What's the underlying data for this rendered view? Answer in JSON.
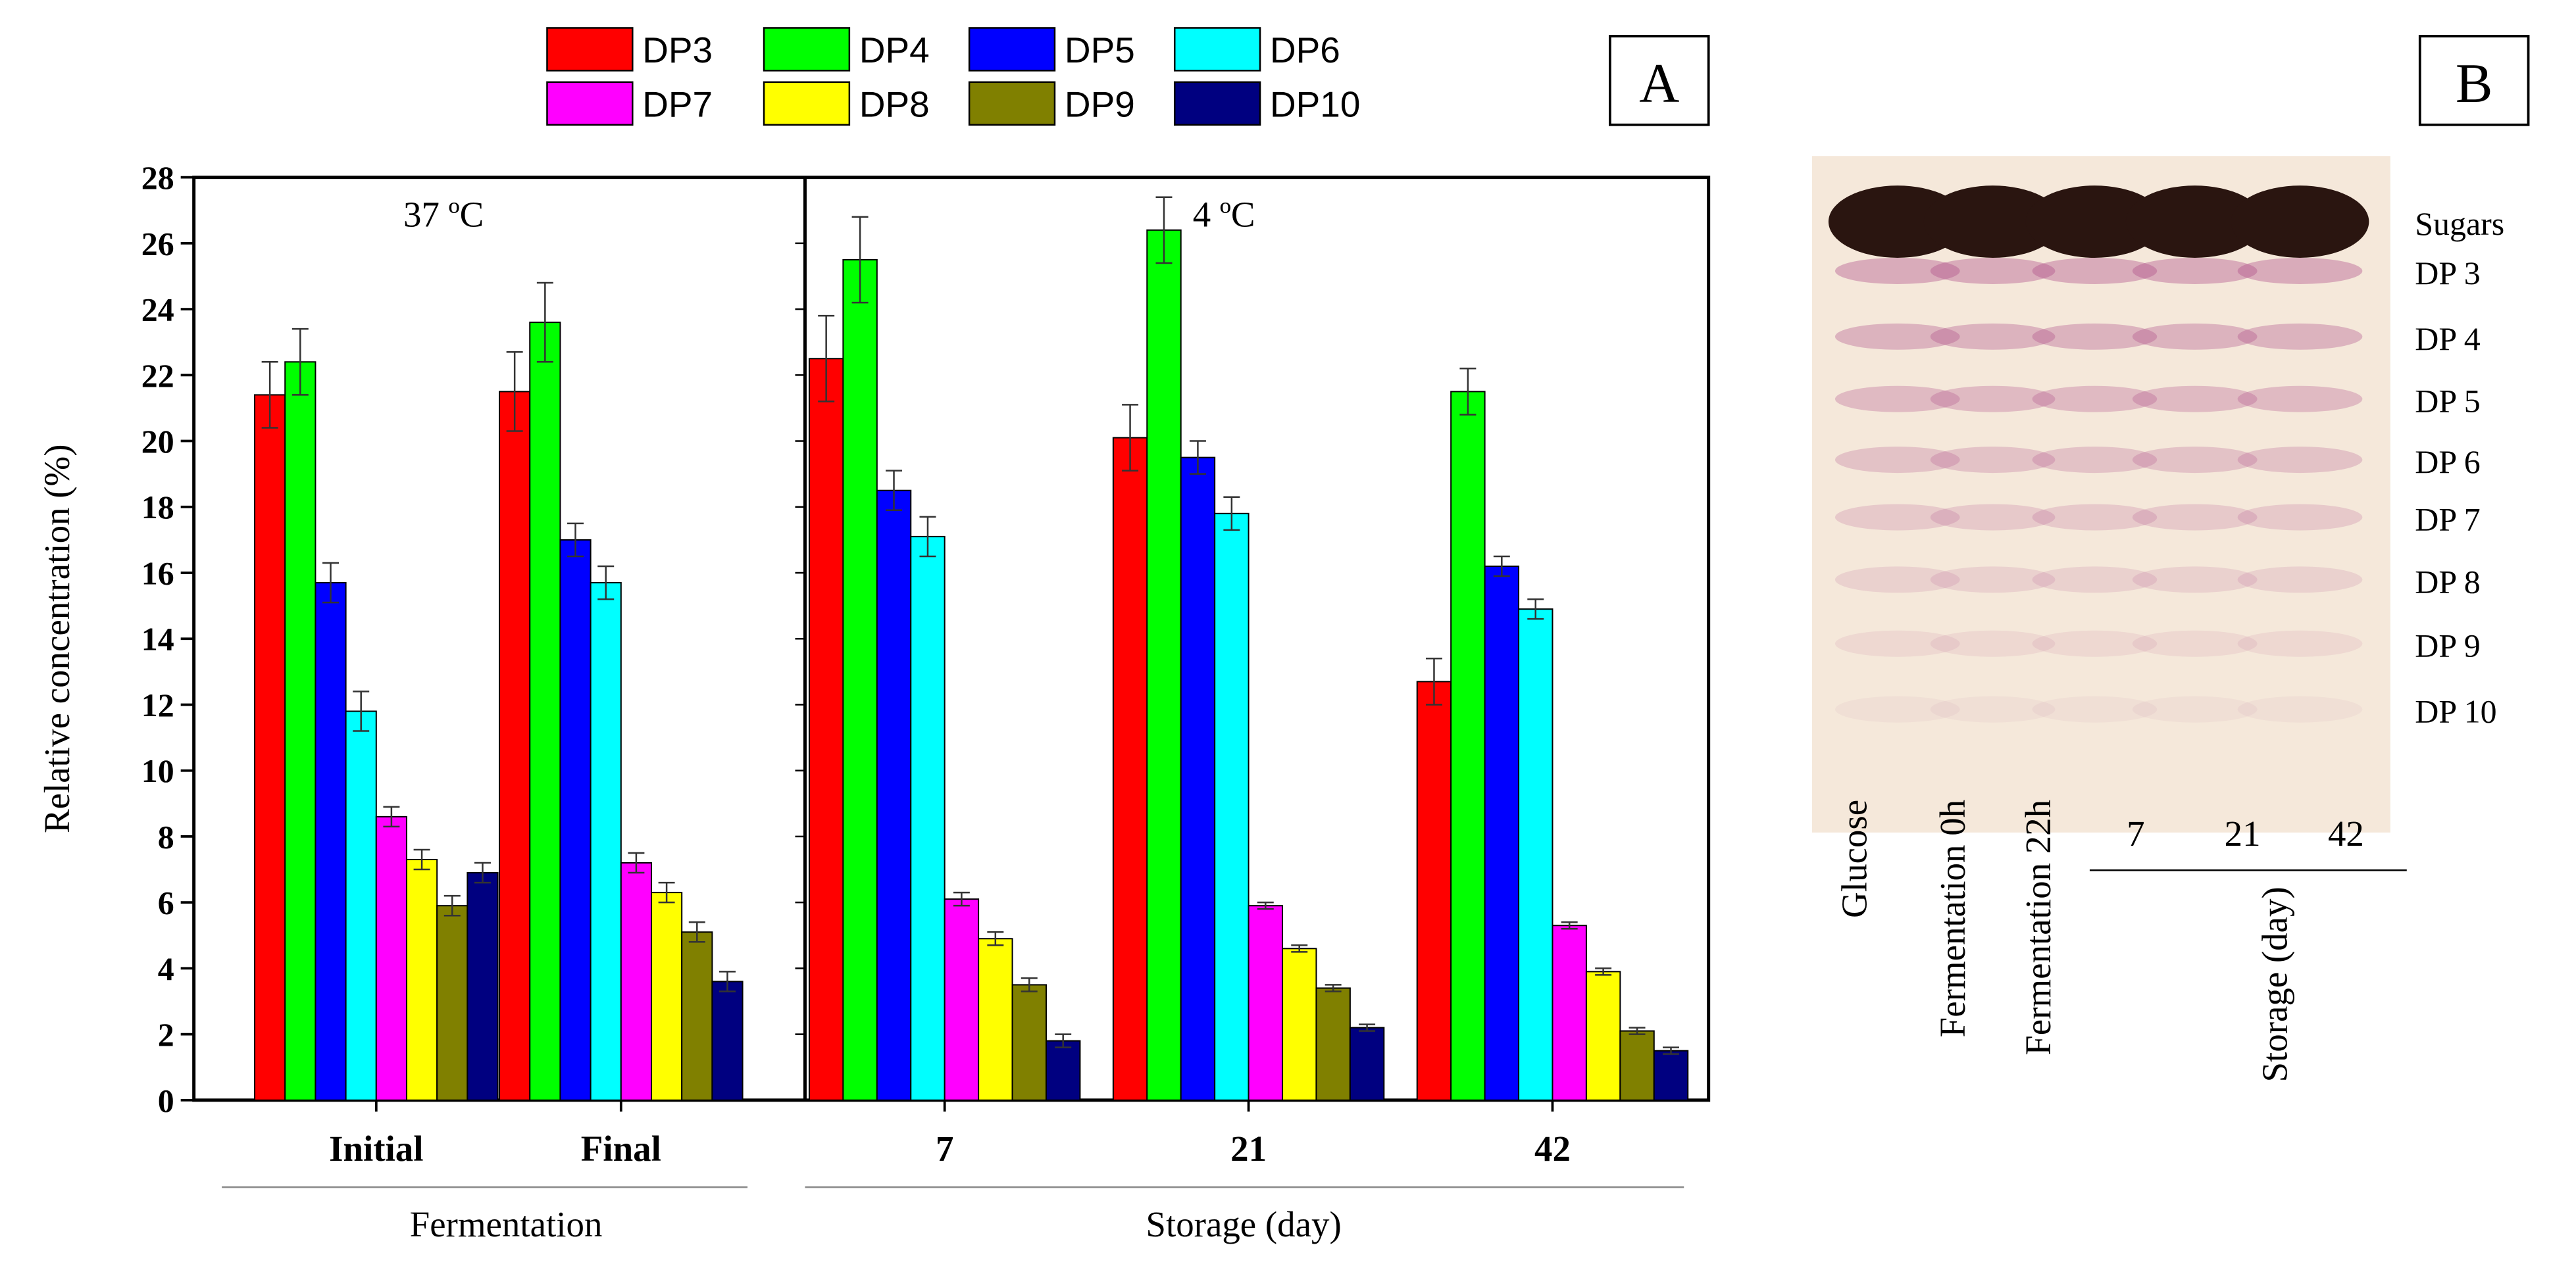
{
  "chart_data": {
    "type": "bar",
    "panel_label": "A",
    "ylabel": "Relative concentration (%)",
    "ylim": [
      0,
      28
    ],
    "yticks": [
      0,
      2,
      4,
      6,
      8,
      10,
      12,
      14,
      16,
      18,
      20,
      22,
      24,
      26,
      28
    ],
    "categories": [
      "Initial",
      "Final",
      "7",
      "21",
      "42"
    ],
    "section_titles": [
      "37 ºC",
      "4 ºC"
    ],
    "group_labels": [
      "Fermentation",
      "Storage (day)"
    ],
    "legend_position": "top-center",
    "series": [
      {
        "name": "DP3",
        "color": "#ff0000",
        "values": [
          21.4,
          21.5,
          22.5,
          20.1,
          12.7
        ],
        "errors": [
          1.0,
          1.2,
          1.3,
          1.0,
          0.7
        ]
      },
      {
        "name": "DP4",
        "color": "#00ff00",
        "values": [
          22.4,
          23.6,
          25.5,
          26.4,
          21.5
        ],
        "errors": [
          1.0,
          1.2,
          1.3,
          1.0,
          0.7
        ]
      },
      {
        "name": "DP5",
        "color": "#0000ff",
        "values": [
          15.7,
          17.0,
          18.5,
          19.5,
          16.2
        ],
        "errors": [
          0.6,
          0.5,
          0.6,
          0.5,
          0.3
        ]
      },
      {
        "name": "DP6",
        "color": "#00ffff",
        "values": [
          11.8,
          15.7,
          17.1,
          17.8,
          14.9
        ],
        "errors": [
          0.6,
          0.5,
          0.6,
          0.5,
          0.3
        ]
      },
      {
        "name": "DP7",
        "color": "#ff00ff",
        "values": [
          8.6,
          7.2,
          6.1,
          5.9,
          5.3
        ],
        "errors": [
          0.3,
          0.3,
          0.2,
          0.1,
          0.1
        ]
      },
      {
        "name": "DP8",
        "color": "#ffff00",
        "values": [
          7.3,
          6.3,
          4.9,
          4.6,
          3.9
        ],
        "errors": [
          0.3,
          0.3,
          0.2,
          0.1,
          0.1
        ]
      },
      {
        "name": "DP9",
        "color": "#808000",
        "values": [
          5.9,
          5.1,
          3.5,
          3.4,
          2.1
        ],
        "errors": [
          0.3,
          0.3,
          0.2,
          0.1,
          0.1
        ]
      },
      {
        "name": "DP10",
        "color": "#000080",
        "values": [
          6.9,
          3.6,
          1.8,
          2.2,
          1.5
        ],
        "errors": [
          0.3,
          0.3,
          0.2,
          0.1,
          0.1
        ]
      }
    ]
  },
  "panel_b": {
    "panel_label": "B",
    "band_labels": [
      "Sugars",
      "DP 3",
      "DP 4",
      "DP 5",
      "DP 6",
      "DP 7",
      "DP 8",
      "DP 9",
      "DP 10"
    ],
    "lane_labels": [
      "Glucose",
      "Fermentation 0h",
      "Fermentation 22h",
      "7",
      "21",
      "42"
    ],
    "storage_label": "Storage (day)"
  }
}
